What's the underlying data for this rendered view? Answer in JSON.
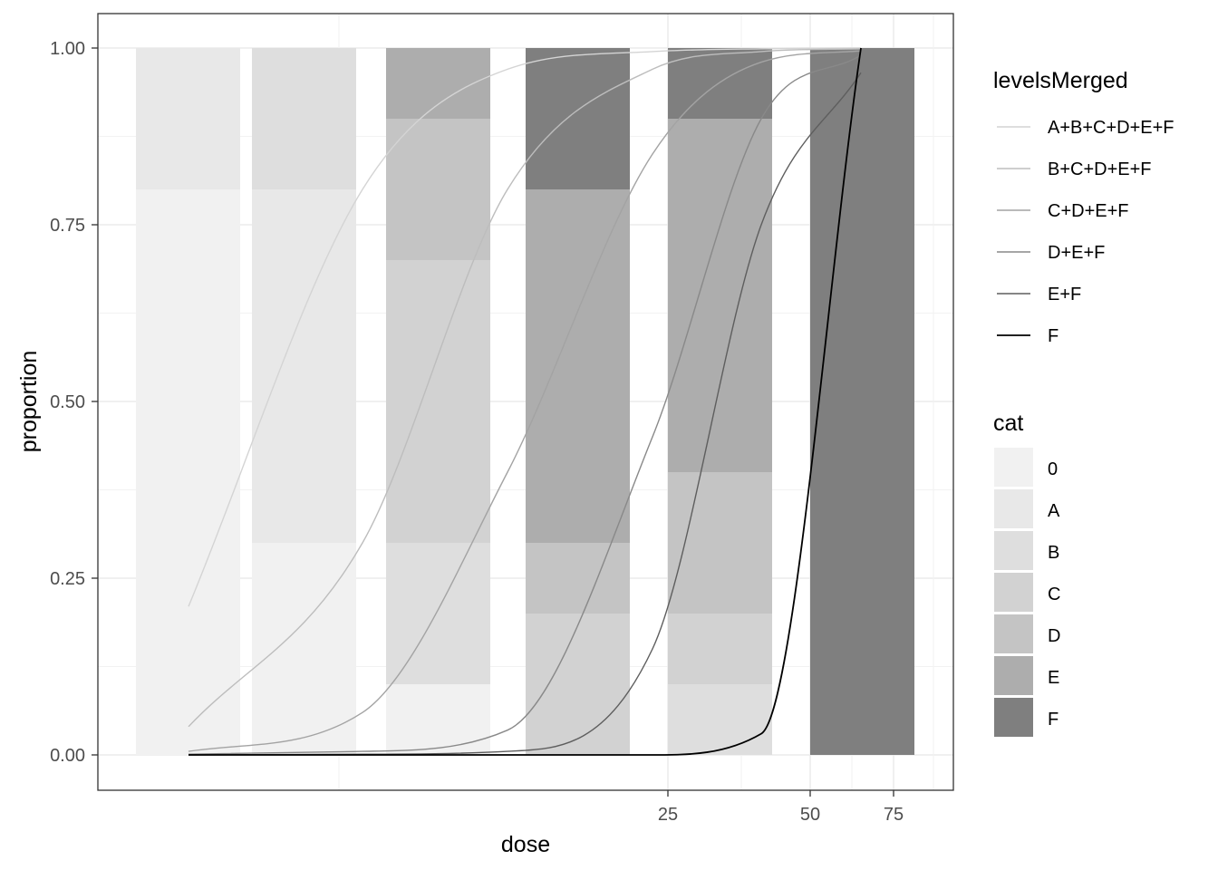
{
  "chart_data": {
    "type": "bar",
    "xlabel": "dose",
    "ylabel": "proportion",
    "ylim": [
      0,
      1
    ],
    "x_tick_labels": [
      "25",
      "50",
      "75"
    ],
    "y_tick_labels": [
      "0.00",
      "0.25",
      "0.50",
      "0.75",
      "1.00"
    ],
    "grid": true,
    "stacked_bars": {
      "legend_title": "cat",
      "categories": [
        "0",
        "A",
        "B",
        "C",
        "D",
        "E",
        "F"
      ],
      "colors": [
        "#f1f1f1",
        "#e8e8e8",
        "#dedede",
        "#d2d2d2",
        "#c4c4c4",
        "#adadad",
        "#7f7f7f"
      ],
      "bars": [
        {
          "proportions": [
            0.8,
            0.2,
            0,
            0,
            0,
            0,
            0
          ]
        },
        {
          "proportions": [
            0.3,
            0.5,
            0.2,
            0,
            0,
            0,
            0
          ]
        },
        {
          "proportions": [
            0.1,
            0,
            0.2,
            0.4,
            0.2,
            0.1,
            0
          ]
        },
        {
          "proportions": [
            0,
            0,
            0,
            0.2,
            0.1,
            0.5,
            0.2
          ]
        },
        {
          "proportions": [
            0,
            0,
            0.1,
            0.1,
            0.2,
            0.5,
            0.1
          ]
        },
        {
          "proportions": [
            0,
            0,
            0,
            0,
            0,
            0,
            1.0
          ]
        }
      ]
    },
    "curves": {
      "legend_title": "levelsMerged",
      "series": [
        {
          "name": "A+B+C+D+E+F",
          "color": "#d4d4d4",
          "points": [
            [
              0,
              0.21
            ],
            [
              1,
              0.8
            ],
            [
              2,
              0.97
            ],
            [
              3,
              0.995
            ],
            [
              4,
              0.999
            ],
            [
              5,
              1.0
            ]
          ]
        },
        {
          "name": "B+C+D+E+F",
          "color": "#bdbdbd",
          "points": [
            [
              0,
              0.04
            ],
            [
              1,
              0.3
            ],
            [
              2,
              0.8
            ],
            [
              3,
              0.97
            ],
            [
              4,
              0.995
            ],
            [
              5,
              0.999
            ]
          ]
        },
        {
          "name": "C+D+E+F",
          "color": "#a3a3a3",
          "points": [
            [
              0,
              0.005
            ],
            [
              1,
              0.06
            ],
            [
              2,
              0.4
            ],
            [
              3,
              0.85
            ],
            [
              4,
              0.98
            ],
            [
              5,
              0.996
            ]
          ]
        },
        {
          "name": "D+E+F",
          "color": "#898989",
          "points": [
            [
              0,
              0.001
            ],
            [
              1,
              0.005
            ],
            [
              2,
              0.035
            ],
            [
              3,
              0.45
            ],
            [
              4,
              0.9
            ],
            [
              5,
              0.99
            ]
          ]
        },
        {
          "name": "E+F",
          "color": "#5e5e5e",
          "points": [
            [
              0,
              0.0
            ],
            [
              1,
              0.001
            ],
            [
              2,
              0.005
            ],
            [
              3,
              0.15
            ],
            [
              4,
              0.75
            ],
            [
              5,
              0.965
            ]
          ]
        },
        {
          "name": "F",
          "color": "#000000",
          "points": [
            [
              0,
              0.0
            ],
            [
              1,
              0.0
            ],
            [
              2,
              0.0
            ],
            [
              3,
              0.0
            ],
            [
              4,
              0.03
            ],
            [
              5,
              1.0
            ]
          ]
        }
      ]
    }
  }
}
